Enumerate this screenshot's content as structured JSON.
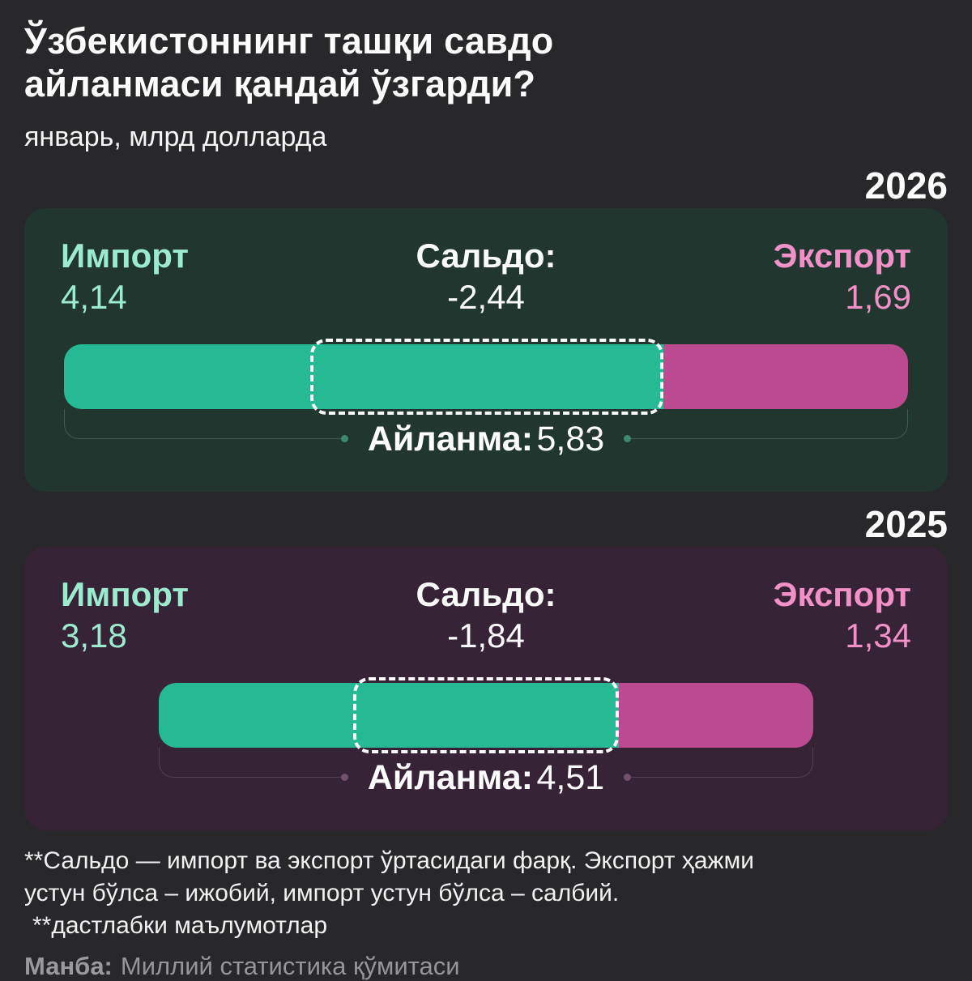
{
  "title": "Ўзбекистоннинг ташқи савдо айланмаси қандай ўзгарди?",
  "subtitle": "январь, млрд долларда",
  "chart_data": {
    "type": "bar",
    "title": "Ўзбекистоннинг ташқи савдо айланмаси қандай ўзгарди?",
    "subtitle": "январь, млрд долларда",
    "unit": "млрд доллар",
    "legend": [
      "Импорт",
      "Сальдо",
      "Экспорт",
      "Айланма"
    ],
    "panels": [
      {
        "year": "2026",
        "import_label": "Импорт",
        "import_value": "4,14",
        "import_num": 4.14,
        "saldo_label": "Сальдо:",
        "saldo_value": "-2,44",
        "saldo_num": -2.44,
        "export_label": "Экспорт",
        "export_value": "1,69",
        "export_num": 1.69,
        "turnover_label": "Айланма:",
        "turnover_value": "5,83",
        "turnover_num": 5.83
      },
      {
        "year": "2025",
        "import_label": "Импорт",
        "import_value": "3,18",
        "import_num": 3.18,
        "saldo_label": "Сальдо:",
        "saldo_value": "-1,84",
        "saldo_num": -1.84,
        "export_label": "Экспорт",
        "export_value": "1,34",
        "export_num": 1.34,
        "turnover_label": "Айланма:",
        "turnover_value": "4,51",
        "turnover_num": 4.51
      }
    ],
    "colors": {
      "page_bg": "#28282B",
      "import_bar": "#25BA94",
      "export_bar": "#BB4A90",
      "import_text": "#9DEBCF",
      "export_text": "#F191C7",
      "panel_2026_bg": "#20362E",
      "panel_2025_bg": "#372336",
      "bracket_line_2026": "#3E5B50",
      "bracket_dot_2026": "#3E8A70",
      "bracket_line_2025": "#543E52",
      "bracket_dot_2025": "#73506B"
    }
  },
  "footnote": {
    "line1": "**Сальдо — импорт ва экспорт ўртасидаги фарқ. Экспорт ҳажми",
    "line2": "устун бўлса – ижобий, импорт устун бўлса – салбий.",
    "line3": "**дастлабки маълумотлар"
  },
  "source": {
    "label": "Манба:",
    "text": "Миллий статистика қўмитаси"
  }
}
